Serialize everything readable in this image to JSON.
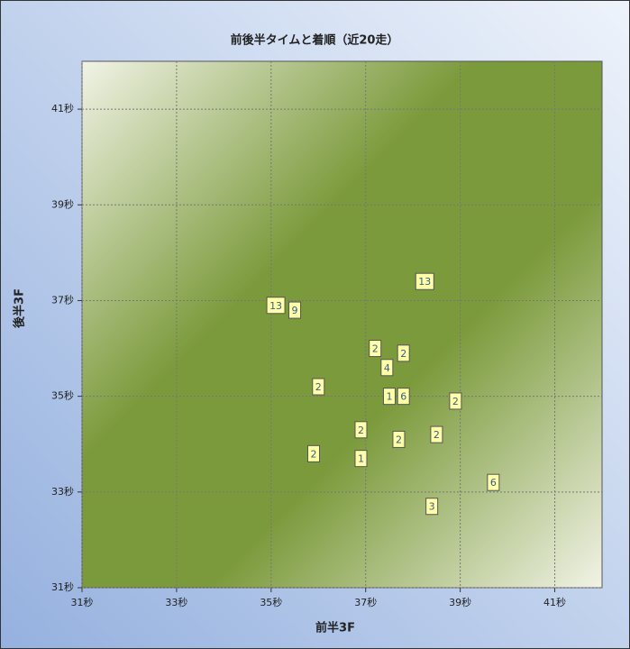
{
  "chart_data": {
    "type": "scatter",
    "title": "前後半タイムと着順（近20走）",
    "x_label": "前半3F",
    "y_label": "後半3F",
    "xlim": [
      31,
      42
    ],
    "ylim": [
      31,
      42
    ],
    "xticks": [
      {
        "value": 31,
        "label": "31秒"
      },
      {
        "value": 33,
        "label": "33秒"
      },
      {
        "value": 35,
        "label": "35秒"
      },
      {
        "value": 37,
        "label": "37秒"
      },
      {
        "value": 39,
        "label": "39秒"
      },
      {
        "value": 41,
        "label": "41秒"
      }
    ],
    "yticks": [
      {
        "value": 31,
        "label": "31秒"
      },
      {
        "value": 33,
        "label": "33秒"
      },
      {
        "value": 35,
        "label": "35秒"
      },
      {
        "value": 37,
        "label": "37秒"
      },
      {
        "value": 39,
        "label": "39秒"
      },
      {
        "value": 41,
        "label": "41秒"
      }
    ],
    "grid": true,
    "series": [
      {
        "color": "#ffffa8",
        "x": [
          35.1,
          35.5,
          38.25,
          37.2,
          37.8,
          37.45,
          36.0,
          37.5,
          37.8,
          38.9,
          36.9,
          37.7,
          38.5,
          35.9,
          36.9,
          39.7,
          38.4
        ],
        "values": [
          36.9,
          36.8,
          37.4,
          36.0,
          35.9,
          35.6,
          35.2,
          35.0,
          35.0,
          34.9,
          34.3,
          34.1,
          34.2,
          33.8,
          33.7,
          33.2,
          32.7
        ],
        "labels": [
          "13",
          "9",
          "13",
          "2",
          "2",
          "4",
          "2",
          "1",
          "6",
          "2",
          "2",
          "2",
          "2",
          "2",
          "1",
          "6",
          "3"
        ]
      }
    ]
  }
}
